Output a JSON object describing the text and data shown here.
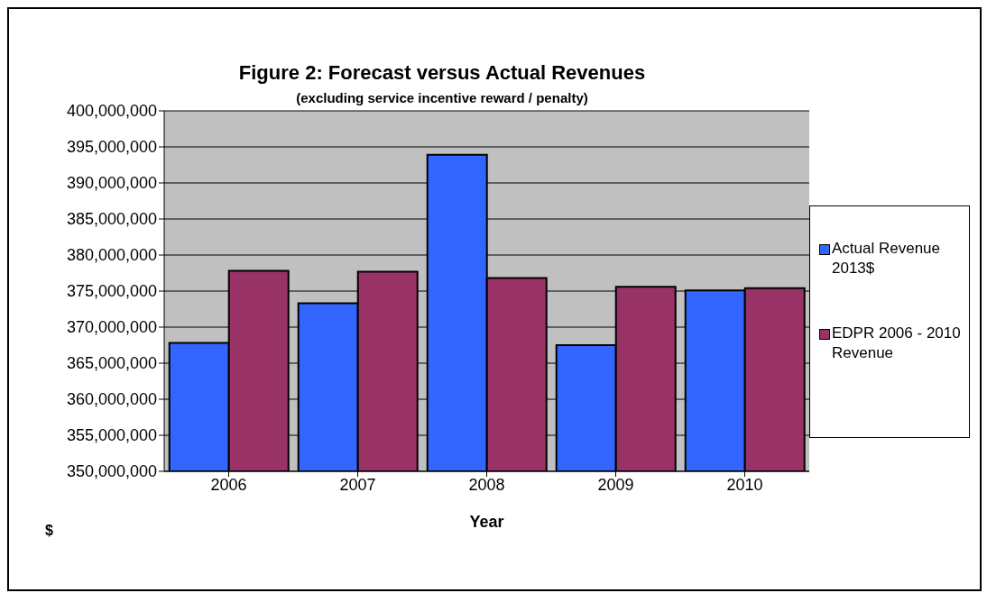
{
  "chart_data": {
    "type": "bar",
    "title": "Figure 2: Forecast versus Actual Revenues",
    "subtitle": "(excluding service incentive reward / penalty)",
    "xlabel": "Year",
    "ylabel": "$",
    "categories": [
      "2006",
      "2007",
      "2008",
      "2009",
      "2010"
    ],
    "series": [
      {
        "name": "Actual Revenue 2013$",
        "color": "#3366ff",
        "values": [
          367800000,
          373300000,
          393900000,
          367500000,
          375100000
        ]
      },
      {
        "name": "EDPR 2006 - 2010 Revenue",
        "color": "#993366",
        "values": [
          377800000,
          377700000,
          376800000,
          375600000,
          375400000
        ]
      }
    ],
    "ylim": [
      350000000,
      400000000
    ],
    "yticks": [
      {
        "value": 350000000,
        "label": "350,000,000"
      },
      {
        "value": 355000000,
        "label": "355,000,000"
      },
      {
        "value": 360000000,
        "label": "360,000,000"
      },
      {
        "value": 365000000,
        "label": "365,000,000"
      },
      {
        "value": 370000000,
        "label": "370,000,000"
      },
      {
        "value": 375000000,
        "label": "375,000,000"
      },
      {
        "value": 380000000,
        "label": "380,000,000"
      },
      {
        "value": 385000000,
        "label": "385,000,000"
      },
      {
        "value": 390000000,
        "label": "390,000,000"
      },
      {
        "value": 395000000,
        "label": "395,000,000"
      },
      {
        "value": 400000000,
        "label": "400,000,000"
      }
    ],
    "grid": "y",
    "legend": "right"
  }
}
